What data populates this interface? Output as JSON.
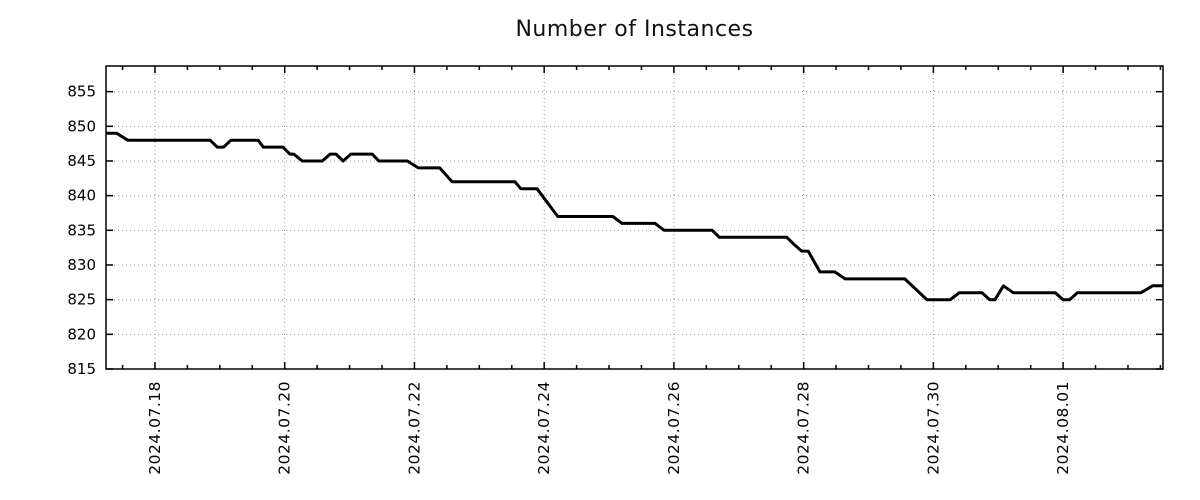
{
  "chart_data": {
    "type": "line",
    "title": "Number of Instances",
    "xlabel": "",
    "ylabel": "",
    "legend": false,
    "grid": true,
    "background": "#ffffff",
    "text_color": "#000000",
    "grid_color": "#989898",
    "y_domain": [
      815,
      858.7
    ],
    "y_ticks": [
      815,
      820,
      825,
      830,
      835,
      840,
      845,
      850,
      855
    ],
    "x_domain_days": [
      0.245,
      16.54
    ],
    "x_minor_tick_step": 0.5,
    "x_major_ticks": [
      {
        "t": 1,
        "label": "2024.07.18"
      },
      {
        "t": 3,
        "label": "2024.07.20"
      },
      {
        "t": 5,
        "label": "2024.07.22"
      },
      {
        "t": 7,
        "label": "2024.07.24"
      },
      {
        "t": 9,
        "label": "2024.07.26"
      },
      {
        "t": 11,
        "label": "2024.07.28"
      },
      {
        "t": 13,
        "label": "2024.07.30"
      },
      {
        "t": 15,
        "label": "2024.08.01"
      }
    ],
    "series": [
      {
        "name": "instances",
        "color": "#000000",
        "points": [
          [
            0.245,
            849
          ],
          [
            0.41,
            849
          ],
          [
            0.58,
            848
          ],
          [
            1.85,
            848
          ],
          [
            1.96,
            847
          ],
          [
            2.06,
            847
          ],
          [
            2.17,
            848
          ],
          [
            2.59,
            848
          ],
          [
            2.67,
            847
          ],
          [
            2.97,
            847
          ],
          [
            3.08,
            846
          ],
          [
            3.14,
            846
          ],
          [
            3.27,
            845
          ],
          [
            3.58,
            845
          ],
          [
            3.7,
            846
          ],
          [
            3.79,
            846
          ],
          [
            3.9,
            845
          ],
          [
            4.02,
            846
          ],
          [
            4.35,
            846
          ],
          [
            4.45,
            845
          ],
          [
            4.89,
            845
          ],
          [
            5.06,
            844
          ],
          [
            5.39,
            844
          ],
          [
            5.58,
            842
          ],
          [
            6.55,
            842
          ],
          [
            6.64,
            841
          ],
          [
            6.89,
            841
          ],
          [
            7.21,
            837
          ],
          [
            8.06,
            837
          ],
          [
            8.2,
            836
          ],
          [
            8.71,
            836
          ],
          [
            8.85,
            835
          ],
          [
            9.59,
            835
          ],
          [
            9.7,
            834
          ],
          [
            10.74,
            834
          ],
          [
            10.85,
            833
          ],
          [
            10.97,
            832
          ],
          [
            11.07,
            832
          ],
          [
            11.25,
            829
          ],
          [
            11.48,
            829
          ],
          [
            11.64,
            828
          ],
          [
            12.56,
            828
          ],
          [
            12.9,
            825
          ],
          [
            13.26,
            825
          ],
          [
            13.4,
            826
          ],
          [
            13.75,
            826
          ],
          [
            13.87,
            825
          ],
          [
            13.95,
            825
          ],
          [
            14.08,
            827
          ],
          [
            14.23,
            826
          ],
          [
            14.88,
            826
          ],
          [
            15.0,
            825
          ],
          [
            15.1,
            825
          ],
          [
            15.22,
            826
          ],
          [
            16.2,
            826
          ],
          [
            16.38,
            827
          ],
          [
            16.54,
            827
          ]
        ]
      }
    ]
  }
}
